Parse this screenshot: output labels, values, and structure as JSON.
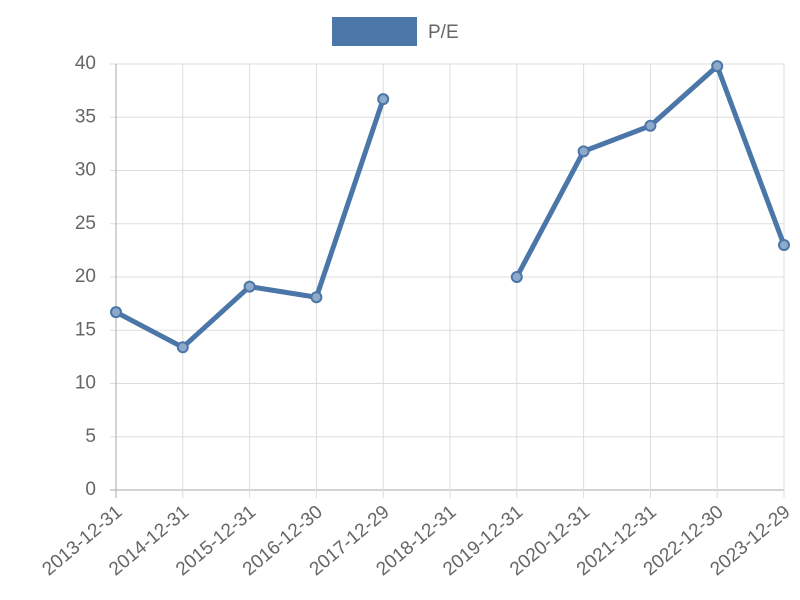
{
  "chart_data": {
    "type": "line",
    "categories": [
      "2013-12-31",
      "2014-12-31",
      "2015-12-31",
      "2016-12-30",
      "2017-12-29",
      "2018-12-31",
      "2019-12-31",
      "2020-12-31",
      "2021-12-31",
      "2022-12-30",
      "2023-12-29"
    ],
    "series": [
      {
        "name": "P/E",
        "color": "#4a76a8",
        "values": [
          16.7,
          13.4,
          19.1,
          18.1,
          36.7,
          null,
          20.0,
          31.8,
          34.2,
          39.8,
          23.0
        ]
      }
    ],
    "ylim": [
      0,
      40
    ],
    "yticks": [
      0,
      5,
      10,
      15,
      20,
      25,
      30,
      35,
      40
    ],
    "grid": true,
    "legend": "top"
  }
}
